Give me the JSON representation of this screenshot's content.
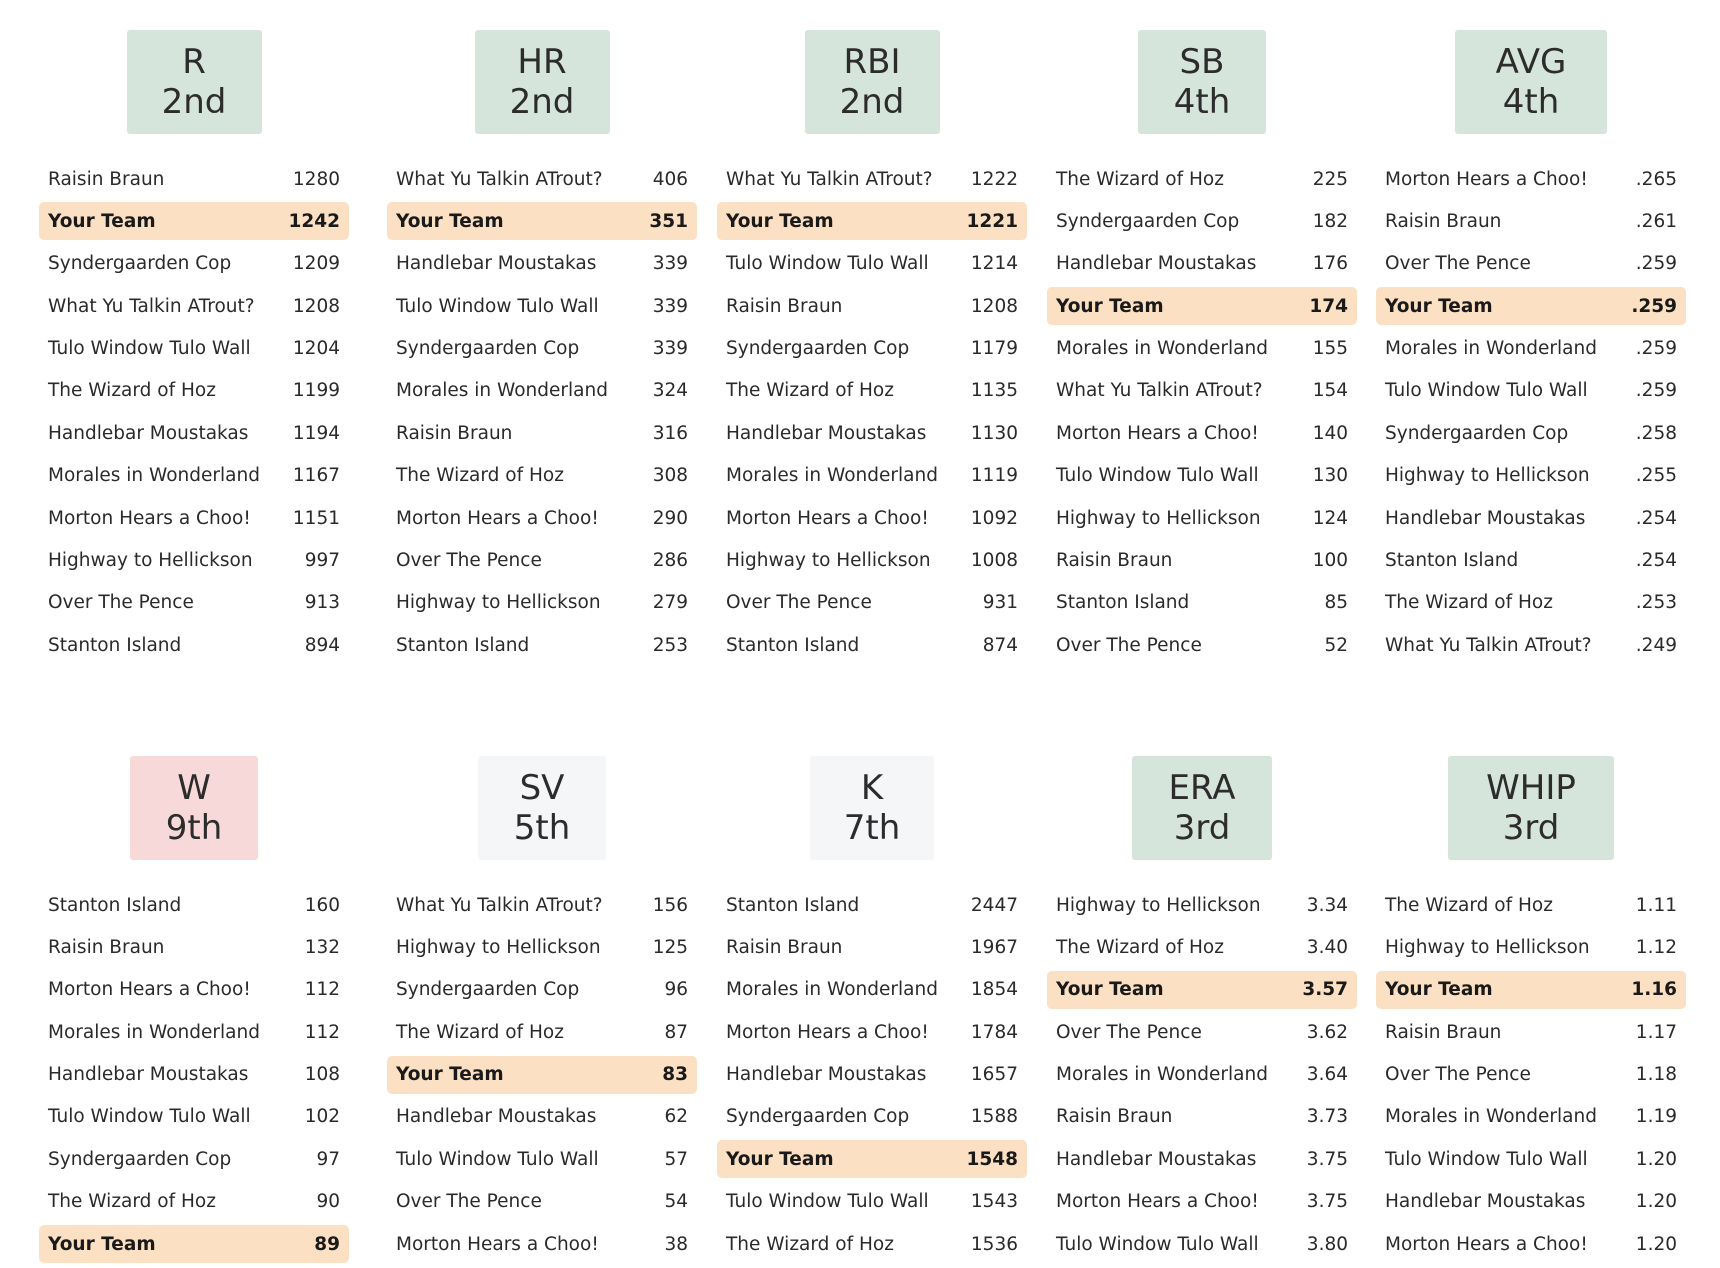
{
  "colors": {
    "good": "#d5e5dc",
    "bad": "#f6d9d8",
    "neutral": "#f5f6f7",
    "highlight": "#fbe0c3"
  },
  "categories": [
    {
      "name": "R",
      "rank": "2nd",
      "tone": "good",
      "rows": [
        {
          "team": "Raisin Braun",
          "value": "1280"
        },
        {
          "team": "Your Team",
          "value": "1242",
          "me": true
        },
        {
          "team": "Syndergaarden Cop",
          "value": "1209"
        },
        {
          "team": "What Yu Talkin ATrout?",
          "value": "1208"
        },
        {
          "team": "Tulo Window Tulo Wall",
          "value": "1204"
        },
        {
          "team": "The Wizard of Hoz",
          "value": "1199"
        },
        {
          "team": "Handlebar Moustakas",
          "value": "1194"
        },
        {
          "team": "Morales in Wonderland",
          "value": "1167"
        },
        {
          "team": "Morton Hears a Choo!",
          "value": "1151"
        },
        {
          "team": "Highway to Hellickson",
          "value": "997"
        },
        {
          "team": "Over The Pence",
          "value": "913"
        },
        {
          "team": "Stanton Island",
          "value": "894"
        }
      ]
    },
    {
      "name": "HR",
      "rank": "2nd",
      "tone": "good",
      "rows": [
        {
          "team": "What Yu Talkin ATrout?",
          "value": "406"
        },
        {
          "team": "Your Team",
          "value": "351",
          "me": true
        },
        {
          "team": "Handlebar Moustakas",
          "value": "339"
        },
        {
          "team": "Tulo Window Tulo Wall",
          "value": "339"
        },
        {
          "team": "Syndergaarden Cop",
          "value": "339"
        },
        {
          "team": "Morales in Wonderland",
          "value": "324"
        },
        {
          "team": "Raisin Braun",
          "value": "316"
        },
        {
          "team": "The Wizard of Hoz",
          "value": "308"
        },
        {
          "team": "Morton Hears a Choo!",
          "value": "290"
        },
        {
          "team": "Over The Pence",
          "value": "286"
        },
        {
          "team": "Highway to Hellickson",
          "value": "279"
        },
        {
          "team": "Stanton Island",
          "value": "253"
        }
      ]
    },
    {
      "name": "RBI",
      "rank": "2nd",
      "tone": "good",
      "rows": [
        {
          "team": "What Yu Talkin ATrout?",
          "value": "1222"
        },
        {
          "team": "Your Team",
          "value": "1221",
          "me": true
        },
        {
          "team": "Tulo Window Tulo Wall",
          "value": "1214"
        },
        {
          "team": "Raisin Braun",
          "value": "1208"
        },
        {
          "team": "Syndergaarden Cop",
          "value": "1179"
        },
        {
          "team": "The Wizard of Hoz",
          "value": "1135"
        },
        {
          "team": "Handlebar Moustakas",
          "value": "1130"
        },
        {
          "team": "Morales in Wonderland",
          "value": "1119"
        },
        {
          "team": "Morton Hears a Choo!",
          "value": "1092"
        },
        {
          "team": "Highway to Hellickson",
          "value": "1008"
        },
        {
          "team": "Over The Pence",
          "value": "931"
        },
        {
          "team": "Stanton Island",
          "value": "874"
        }
      ]
    },
    {
      "name": "SB",
      "rank": "4th",
      "tone": "good",
      "rows": [
        {
          "team": "The Wizard of Hoz",
          "value": "225"
        },
        {
          "team": "Syndergaarden Cop",
          "value": "182"
        },
        {
          "team": "Handlebar Moustakas",
          "value": "176"
        },
        {
          "team": "Your Team",
          "value": "174",
          "me": true
        },
        {
          "team": "Morales in Wonderland",
          "value": "155"
        },
        {
          "team": "What Yu Talkin ATrout?",
          "value": "154"
        },
        {
          "team": "Morton Hears a Choo!",
          "value": "140"
        },
        {
          "team": "Tulo Window Tulo Wall",
          "value": "130"
        },
        {
          "team": "Highway to Hellickson",
          "value": "124"
        },
        {
          "team": "Raisin Braun",
          "value": "100"
        },
        {
          "team": "Stanton Island",
          "value": "85"
        },
        {
          "team": "Over The Pence",
          "value": "52"
        }
      ]
    },
    {
      "name": "AVG",
      "rank": "4th",
      "tone": "good",
      "rows": [
        {
          "team": "Morton Hears a Choo!",
          "value": ".265"
        },
        {
          "team": "Raisin Braun",
          "value": ".261"
        },
        {
          "team": "Over The Pence",
          "value": ".259"
        },
        {
          "team": "Your Team",
          "value": ".259",
          "me": true
        },
        {
          "team": "Morales in Wonderland",
          "value": ".259"
        },
        {
          "team": "Tulo Window Tulo Wall",
          "value": ".259"
        },
        {
          "team": "Syndergaarden Cop",
          "value": ".258"
        },
        {
          "team": "Highway to Hellickson",
          "value": ".255"
        },
        {
          "team": "Handlebar Moustakas",
          "value": ".254"
        },
        {
          "team": "Stanton Island",
          "value": ".254"
        },
        {
          "team": "The Wizard of Hoz",
          "value": ".253"
        },
        {
          "team": "What Yu Talkin ATrout?",
          "value": ".249"
        }
      ]
    },
    {
      "name": "W",
      "rank": "9th",
      "tone": "bad",
      "rows": [
        {
          "team": "Stanton Island",
          "value": "160"
        },
        {
          "team": "Raisin Braun",
          "value": "132"
        },
        {
          "team": "Morton Hears a Choo!",
          "value": "112"
        },
        {
          "team": "Morales in Wonderland",
          "value": "112"
        },
        {
          "team": "Handlebar Moustakas",
          "value": "108"
        },
        {
          "team": "Tulo Window Tulo Wall",
          "value": "102"
        },
        {
          "team": "Syndergaarden Cop",
          "value": "97"
        },
        {
          "team": "The Wizard of Hoz",
          "value": "90"
        },
        {
          "team": "Your Team",
          "value": "89",
          "me": true
        }
      ]
    },
    {
      "name": "SV",
      "rank": "5th",
      "tone": "neutral",
      "rows": [
        {
          "team": "What Yu Talkin ATrout?",
          "value": "156"
        },
        {
          "team": "Highway to Hellickson",
          "value": "125"
        },
        {
          "team": "Syndergaarden Cop",
          "value": "96"
        },
        {
          "team": "The Wizard of Hoz",
          "value": "87"
        },
        {
          "team": "Your Team",
          "value": "83",
          "me": true
        },
        {
          "team": "Handlebar Moustakas",
          "value": "62"
        },
        {
          "team": "Tulo Window Tulo Wall",
          "value": "57"
        },
        {
          "team": "Over The Pence",
          "value": "54"
        },
        {
          "team": "Morton Hears a Choo!",
          "value": "38"
        }
      ]
    },
    {
      "name": "K",
      "rank": "7th",
      "tone": "neutral",
      "rows": [
        {
          "team": "Stanton Island",
          "value": "2447"
        },
        {
          "team": "Raisin Braun",
          "value": "1967"
        },
        {
          "team": "Morales in Wonderland",
          "value": "1854"
        },
        {
          "team": "Morton Hears a Choo!",
          "value": "1784"
        },
        {
          "team": "Handlebar Moustakas",
          "value": "1657"
        },
        {
          "team": "Syndergaarden Cop",
          "value": "1588"
        },
        {
          "team": "Your Team",
          "value": "1548",
          "me": true
        },
        {
          "team": "Tulo Window Tulo Wall",
          "value": "1543"
        },
        {
          "team": "The Wizard of Hoz",
          "value": "1536"
        }
      ]
    },
    {
      "name": "ERA",
      "rank": "3rd",
      "tone": "good",
      "rows": [
        {
          "team": "Highway to Hellickson",
          "value": "3.34"
        },
        {
          "team": "The Wizard of Hoz",
          "value": "3.40"
        },
        {
          "team": "Your Team",
          "value": "3.57",
          "me": true
        },
        {
          "team": "Over The Pence",
          "value": "3.62"
        },
        {
          "team": "Morales in Wonderland",
          "value": "3.64"
        },
        {
          "team": "Raisin Braun",
          "value": "3.73"
        },
        {
          "team": "Handlebar Moustakas",
          "value": "3.75"
        },
        {
          "team": "Morton Hears a Choo!",
          "value": "3.75"
        },
        {
          "team": "Tulo Window Tulo Wall",
          "value": "3.80"
        }
      ]
    },
    {
      "name": "WHIP",
      "rank": "3rd",
      "tone": "good",
      "rows": [
        {
          "team": "The Wizard of Hoz",
          "value": "1.11"
        },
        {
          "team": "Highway to Hellickson",
          "value": "1.12"
        },
        {
          "team": "Your Team",
          "value": "1.16",
          "me": true
        },
        {
          "team": "Raisin Braun",
          "value": "1.17"
        },
        {
          "team": "Over The Pence",
          "value": "1.18"
        },
        {
          "team": "Morales in Wonderland",
          "value": "1.19"
        },
        {
          "team": "Tulo Window Tulo Wall",
          "value": "1.20"
        },
        {
          "team": "Handlebar Moustakas",
          "value": "1.20"
        },
        {
          "team": "Morton Hears a Choo!",
          "value": "1.20"
        }
      ]
    }
  ]
}
